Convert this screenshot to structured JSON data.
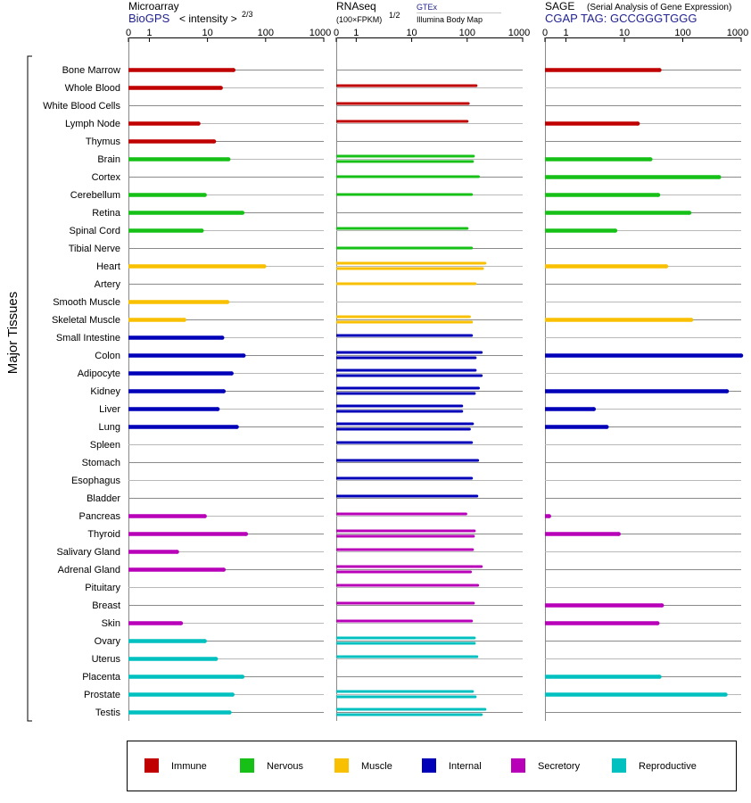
{
  "colors": {
    "Immune": "#c00000",
    "Nervous": "#16c016",
    "Muscle": "#f8c000",
    "Internal": "#0000b8",
    "Secretory": "#b800b8",
    "Reproductive": "#00c0c0"
  },
  "y_axis_label": "Major Tissues",
  "panels": [
    {
      "title": "Microarray",
      "line2_blue": "BioGPS",
      "line2_suffix": "< intensity >",
      "line2_sup": "2/3",
      "line3_a": "",
      "line3_b": ""
    },
    {
      "title": "RNAseq",
      "line2_blue": "",
      "line2_suffix": "(100×FPKM)",
      "line2_sup": "1/2",
      "line3_a": "GTEx",
      "line3_b": "Illumina Body Map"
    },
    {
      "title": "SAGE",
      "title_suffix": "(Serial Analysis of Gene Expression)",
      "line2_blue": "CGAP TAG: GCCGGGTGGG",
      "line2_suffix": "",
      "line2_sup": "",
      "line3_a": "",
      "line3_b": ""
    }
  ],
  "tick_labels": [
    "0",
    "1",
    "10",
    "100",
    "1000"
  ],
  "legend": [
    {
      "label": "Immune",
      "color": "#c00000"
    },
    {
      "label": "Nervous",
      "color": "#16c016"
    },
    {
      "label": "Muscle",
      "color": "#f8c000"
    },
    {
      "label": "Internal",
      "color": "#0000b8"
    },
    {
      "label": "Secretory",
      "color": "#b800b8"
    },
    {
      "label": "Reproductive",
      "color": "#00c0c0"
    }
  ],
  "chart_data": {
    "type": "bar",
    "orientation": "horizontal",
    "x_scale": "log (0, 1, 10, 100, 1000)",
    "xlim": [
      0,
      1000
    ],
    "categories": [
      "Bone Marrow",
      "Whole Blood",
      "White Blood Cells",
      "Lymph Node",
      "Thymus",
      "Brain",
      "Cortex",
      "Cerebellum",
      "Retina",
      "Spinal Cord",
      "Tibial Nerve",
      "Heart",
      "Artery",
      "Smooth Muscle",
      "Skeletal Muscle",
      "Small Intestine",
      "Colon",
      "Adipocyte",
      "Kidney",
      "Liver",
      "Lung",
      "Spleen",
      "Stomach",
      "Esophagus",
      "Bladder",
      "Pancreas",
      "Thyroid",
      "Salivary Gland",
      "Adrenal Gland",
      "Pituitary",
      "Breast",
      "Skin",
      "Ovary",
      "Uterus",
      "Placenta",
      "Prostate",
      "Testis"
    ],
    "groups": [
      "Immune",
      "Immune",
      "Immune",
      "Immune",
      "Immune",
      "Nervous",
      "Nervous",
      "Nervous",
      "Nervous",
      "Nervous",
      "Nervous",
      "Muscle",
      "Muscle",
      "Muscle",
      "Muscle",
      "Internal",
      "Internal",
      "Internal",
      "Internal",
      "Internal",
      "Internal",
      "Internal",
      "Internal",
      "Internal",
      "Internal",
      "Secretory",
      "Secretory",
      "Secretory",
      "Secretory",
      "Secretory",
      "Secretory",
      "Secretory",
      "Reproductive",
      "Reproductive",
      "Reproductive",
      "Reproductive",
      "Reproductive"
    ],
    "series": [
      {
        "name": "Microarray",
        "values": [
          28,
          17,
          null,
          7,
          13,
          23,
          null,
          9,
          40,
          8,
          null,
          95,
          null,
          22,
          4,
          18,
          42,
          26,
          19,
          15,
          32,
          null,
          null,
          null,
          null,
          9,
          46,
          3,
          19,
          null,
          null,
          3.5,
          9,
          14,
          40,
          27,
          24
        ]
      },
      {
        "name": "RNAseq GTEx",
        "values": [
          null,
          null,
          null,
          null,
          null,
          130,
          160,
          120,
          null,
          null,
          120,
          210,
          140,
          null,
          110,
          null,
          180,
          140,
          160,
          80,
          125,
          null,
          null,
          null,
          null,
          null,
          135,
          null,
          180,
          null,
          null,
          null,
          135,
          null,
          null,
          125,
          210
        ]
      },
      {
        "name": "RNAseq Illumina Body Map",
        "values": [
          null,
          145,
          105,
          100,
          null,
          125,
          null,
          null,
          null,
          100,
          null,
          190,
          null,
          null,
          120,
          120,
          140,
          180,
          135,
          80,
          110,
          120,
          155,
          120,
          150,
          95,
          130,
          125,
          115,
          155,
          130,
          120,
          135,
          150,
          null,
          140,
          180
        ]
      },
      {
        "name": "SAGE",
        "values": [
          40,
          null,
          null,
          17,
          null,
          28,
          420,
          38,
          130,
          7,
          null,
          52,
          null,
          null,
          140,
          null,
          1000,
          null,
          570,
          3,
          5,
          null,
          null,
          null,
          null,
          0.2,
          8,
          null,
          null,
          null,
          44,
          37,
          null,
          null,
          40,
          540,
          null
        ]
      }
    ]
  }
}
